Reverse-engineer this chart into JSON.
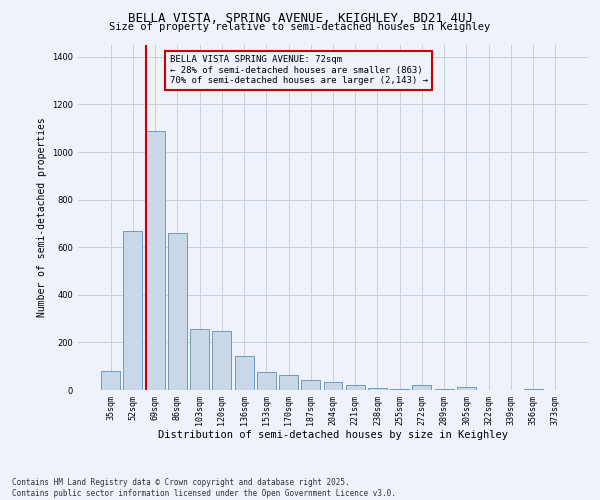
{
  "title1": "BELLA VISTA, SPRING AVENUE, KEIGHLEY, BD21 4UJ",
  "title2": "Size of property relative to semi-detached houses in Keighley",
  "xlabel": "Distribution of semi-detached houses by size in Keighley",
  "ylabel": "Number of semi-detached properties",
  "categories": [
    "35sqm",
    "52sqm",
    "69sqm",
    "86sqm",
    "103sqm",
    "120sqm",
    "136sqm",
    "153sqm",
    "170sqm",
    "187sqm",
    "204sqm",
    "221sqm",
    "238sqm",
    "255sqm",
    "272sqm",
    "289sqm",
    "305sqm",
    "322sqm",
    "339sqm",
    "356sqm",
    "373sqm"
  ],
  "values": [
    80,
    670,
    1090,
    660,
    255,
    250,
    145,
    75,
    65,
    40,
    35,
    20,
    10,
    5,
    22,
    5,
    12,
    0,
    0,
    5,
    0
  ],
  "bar_color": "#c8d8e8",
  "bar_edge_color": "#6090b0",
  "property_line_bin": 2,
  "property_sqm": 72,
  "property_label": "BELLA VISTA SPRING AVENUE: 72sqm",
  "pct_smaller": 28,
  "pct_larger": 70,
  "n_smaller": 863,
  "n_larger": 2143,
  "annotation_box_color": "#cc0000",
  "vline_color": "#cc0000",
  "bg_color": "#eef2fb",
  "grid_color": "#c8d0e0",
  "ylim": [
    0,
    1450
  ],
  "footer1": "Contains HM Land Registry data © Crown copyright and database right 2025.",
  "footer2": "Contains public sector information licensed under the Open Government Licence v3.0."
}
